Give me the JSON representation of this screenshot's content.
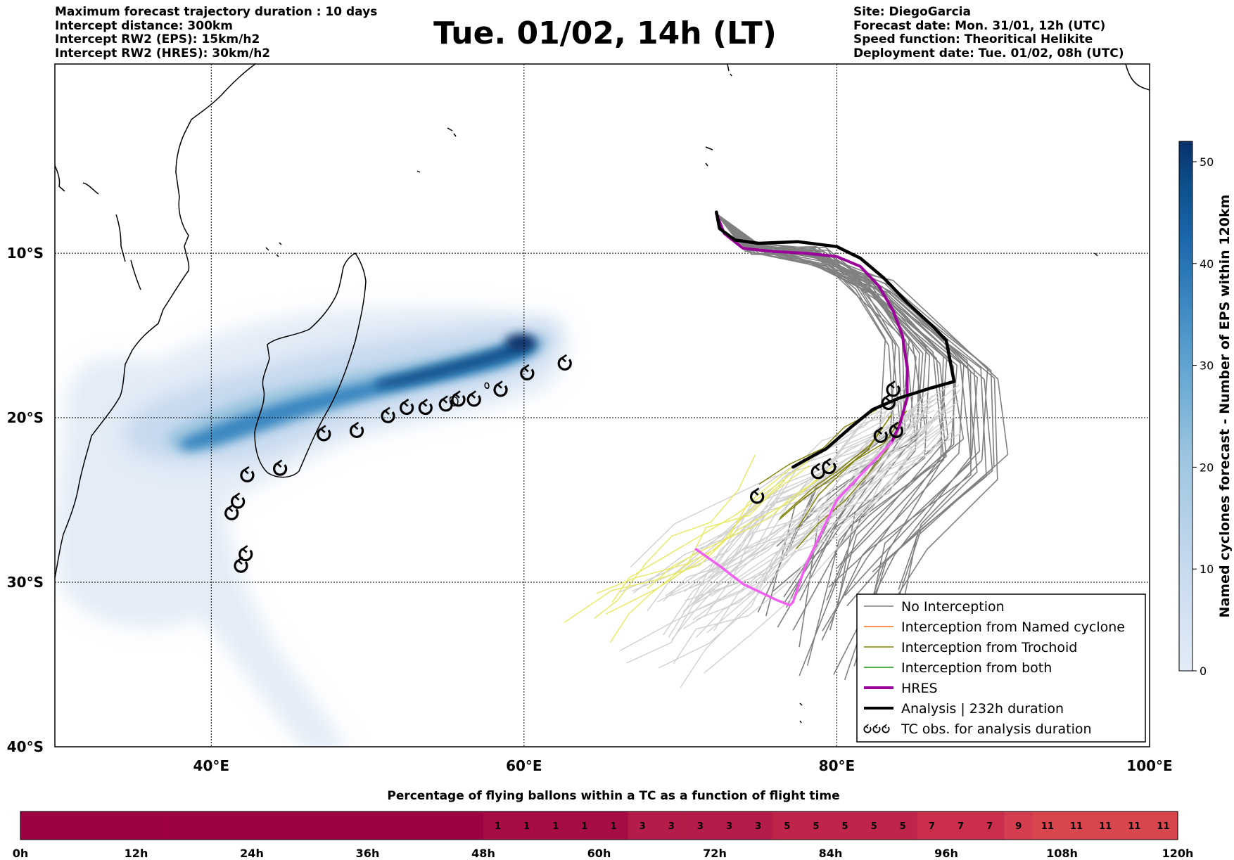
{
  "header": {
    "left_lines": [
      "Maximum forecast trajectory duration : 10 days",
      "Intercept distance: 300km",
      "Intercept RW2 (EPS):  15km/h2",
      "Intercept RW2 (HRES): 30km/h2"
    ],
    "title": "Tue. 01/02, 14h (LT)",
    "right_lines": [
      "Site: DiegoGarcia",
      "Forecast date: Mon. 31/01, 12h (UTC)",
      "Speed function: Theoritical Helikite",
      "Deployment date: Tue. 01/02, 08h (UTC)"
    ]
  },
  "chart_data": [
    {
      "type": "map",
      "axes": {
        "lon_range": [
          30,
          100
        ],
        "lat_range": [
          -40,
          1.5
        ],
        "lon_ticks": [
          {
            "value": 40,
            "label": "40°E"
          },
          {
            "value": 60,
            "label": "60°E"
          },
          {
            "value": 80,
            "label": "80°E"
          },
          {
            "value": 100,
            "label": "100°E"
          }
        ],
        "lat_ticks": [
          {
            "value": -10,
            "label": "10°S"
          },
          {
            "value": -20,
            "label": "20°S"
          },
          {
            "value": -30,
            "label": "30°S"
          },
          {
            "value": -40,
            "label": "40°S"
          }
        ],
        "gridlines": "dotted"
      },
      "legend": {
        "placement": "lower-right",
        "entries": [
          {
            "label": "No Interception",
            "color": "#808080"
          },
          {
            "label": "Interception from Named cyclone",
            "color": "#ff6a1a"
          },
          {
            "label": "Interception from Trochoid",
            "color": "#808000"
          },
          {
            "label": "Interception from both",
            "color": "#1a9a1a"
          },
          {
            "label": "HRES",
            "color": "#9b009b"
          },
          {
            "label": "Analysis | 232h duration",
            "color": "#000000"
          },
          {
            "label": "TC obs. for analysis duration",
            "icon": "cyclone-symbol-icon"
          }
        ]
      },
      "colors": {
        "hres_late": "#f060f0",
        "eps_light": "#d0d0d0",
        "eps_yellow": "#e8e860",
        "land_line": "#000000"
      },
      "analysis_track": [
        [
          72.3,
          -7.5
        ],
        [
          72.5,
          -8.5
        ],
        [
          73.5,
          -9.2
        ],
        [
          75,
          -9.4
        ],
        [
          77.5,
          -9.3
        ],
        [
          80,
          -9.6
        ],
        [
          81.5,
          -10.3
        ],
        [
          83,
          -11.5
        ],
        [
          84.5,
          -13
        ],
        [
          86.2,
          -14.5
        ],
        [
          87,
          -15.3
        ],
        [
          87.5,
          -17.8
        ],
        [
          86,
          -18.2
        ],
        [
          84,
          -18.8
        ],
        [
          82.3,
          -19.5
        ],
        [
          81,
          -20.5
        ],
        [
          79.3,
          -21.9
        ],
        [
          78.5,
          -22.3
        ],
        [
          77.2,
          -23
        ]
      ],
      "hres_track": [
        [
          72.3,
          -7.6
        ],
        [
          72.8,
          -8.8
        ],
        [
          74,
          -9.7
        ],
        [
          76,
          -9.9
        ],
        [
          78,
          -10
        ],
        [
          80,
          -10.2
        ],
        [
          81.5,
          -10.8
        ],
        [
          82.7,
          -12
        ],
        [
          83.6,
          -13.5
        ],
        [
          84.2,
          -15
        ],
        [
          84.5,
          -17
        ],
        [
          84.5,
          -18.8
        ],
        [
          84,
          -20.5
        ],
        [
          83.5,
          -21.5
        ]
      ],
      "hres_track_late": [
        [
          83.5,
          -21.5
        ],
        [
          82.5,
          -22.5
        ],
        [
          81.5,
          -23.5
        ],
        [
          80,
          -25
        ],
        [
          79,
          -27
        ],
        [
          78,
          -29
        ],
        [
          77.2,
          -31.2
        ],
        [
          77,
          -31.4
        ],
        [
          76.2,
          -31.1
        ],
        [
          74,
          -30.1
        ],
        [
          72.5,
          -29
        ],
        [
          71,
          -28
        ]
      ],
      "tc_observations": [
        [
          62.6,
          -16.7
        ],
        [
          60.2,
          -17.3
        ],
        [
          58.5,
          -18.3
        ],
        [
          56.8,
          -18.9
        ],
        [
          55.8,
          -18.9
        ],
        [
          55,
          -19.2
        ],
        [
          53.7,
          -19.4
        ],
        [
          52.5,
          -19.4
        ],
        [
          51.3,
          -19.9
        ],
        [
          49.3,
          -20.8
        ],
        [
          47.2,
          -21
        ],
        [
          44.4,
          -23.1
        ],
        [
          42.3,
          -23.5
        ],
        [
          41.7,
          -25.1
        ],
        [
          41.3,
          -25.8
        ],
        [
          42.2,
          -28.3
        ],
        [
          41.9,
          -29
        ],
        [
          83.6,
          -18.3
        ],
        [
          83.3,
          -19.1
        ],
        [
          83.8,
          -20.8
        ],
        [
          82.8,
          -21.1
        ],
        [
          79.5,
          -23
        ],
        [
          78.8,
          -23.3
        ],
        [
          74.9,
          -24.8
        ]
      ],
      "colorbar": {
        "label": "Named cyclones forecast - Number of EPS within 120km",
        "range": [
          0,
          52
        ],
        "ticks": [
          0,
          10,
          20,
          30,
          40,
          50
        ],
        "colors": [
          "#e3ecf7",
          "#c6d9ee",
          "#9ec6e0",
          "#6aaad4",
          "#3a87c1",
          "#1a66aa",
          "#0c4f8b",
          "#08306b"
        ]
      }
    },
    {
      "type": "heatmap",
      "title": "Percentage of flying ballons within a TC as a function of flight time",
      "x_labels": [
        "0h",
        "12h",
        "24h",
        "36h",
        "48h",
        "60h",
        "72h",
        "84h",
        "96h",
        "108h",
        "120h"
      ],
      "hours_per_cell": 3,
      "values": [
        0,
        0,
        0,
        0,
        0,
        0,
        0,
        0,
        0,
        0,
        0,
        0,
        0,
        0,
        0,
        0,
        1,
        1,
        1,
        1,
        1,
        3,
        3,
        3,
        3,
        3,
        5,
        5,
        5,
        5,
        5,
        7,
        7,
        7,
        9,
        11,
        11,
        11,
        11,
        11
      ],
      "color_scale": {
        "0": "#9e0142",
        "1": "#a80c45",
        "3": "#b51c49",
        "5": "#bf244b",
        "7": "#cb2e4d",
        "9": "#d43d4f",
        "11": "#d9464e"
      }
    }
  ]
}
